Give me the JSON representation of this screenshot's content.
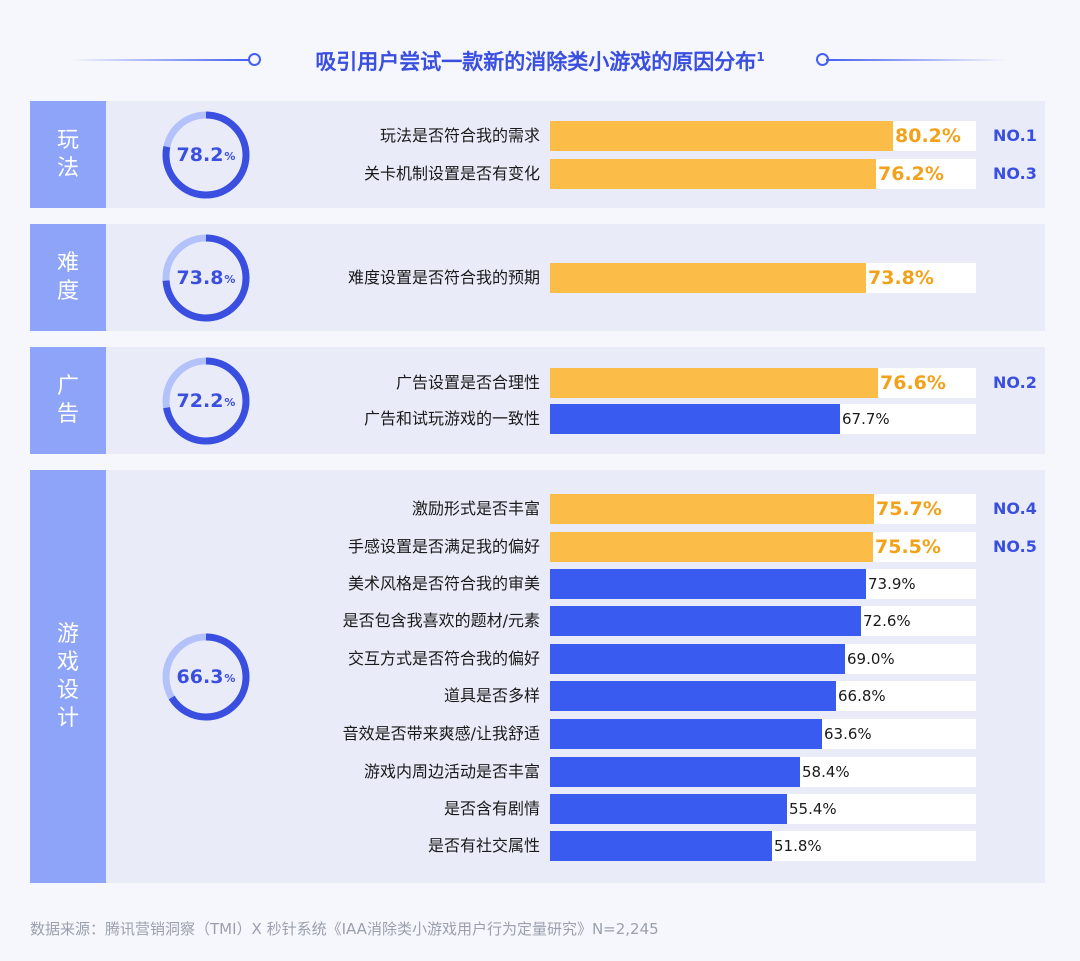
{
  "title": "吸引用户尝试一款新的消除类小游戏的原因分布",
  "title_sup": "1",
  "footer": "数据来源：腾讯营销洞察（TMI）X 秒针系统《IAA消除类小游戏用户行为定量研究》N=2,245",
  "colors": {
    "top5_bar": "#fbbd48",
    "other_bar": "#3a5bf0",
    "accent": "#3a4fe0",
    "ring_light": "#b4c2fb",
    "category_bg": "#8ea4f8"
  },
  "chart_data": {
    "type": "bar",
    "orientation": "horizontal",
    "groups": [
      {
        "category": "玩法",
        "overall": 78.2,
        "overall_label": "78.2",
        "unit": "%",
        "items": [
          {
            "label": "玩法是否符合我的需求",
            "value": 80.2,
            "value_label": "80.2%",
            "rank": "NO.1",
            "highlight": true
          },
          {
            "label": "关卡机制设置是否有变化",
            "value": 76.2,
            "value_label": "76.2%",
            "rank": "NO.3",
            "highlight": true
          }
        ]
      },
      {
        "category": "难度",
        "overall": 73.8,
        "overall_label": "73.8",
        "unit": "%",
        "items": [
          {
            "label": "难度设置是否符合我的预期",
            "value": 73.8,
            "value_label": "73.8%",
            "rank": "",
            "highlight": true
          }
        ]
      },
      {
        "category": "广告",
        "overall": 72.2,
        "overall_label": "72.2",
        "unit": "%",
        "items": [
          {
            "label": "广告设置是否合理性",
            "value": 76.6,
            "value_label": "76.6%",
            "rank": "NO.2",
            "highlight": true
          },
          {
            "label": "广告和试玩游戏的一致性",
            "value": 67.7,
            "value_label": "67.7%",
            "rank": "",
            "highlight": false
          }
        ]
      },
      {
        "category": "游戏设计",
        "overall": 66.3,
        "overall_label": "66.3",
        "unit": "%",
        "items": [
          {
            "label": "激励形式是否丰富",
            "value": 75.7,
            "value_label": "75.7%",
            "rank": "NO.4",
            "highlight": true
          },
          {
            "label": "手感设置是否满足我的偏好",
            "value": 75.5,
            "value_label": "75.5%",
            "rank": "NO.5",
            "highlight": true
          },
          {
            "label": "美术风格是否符合我的审美",
            "value": 73.9,
            "value_label": "73.9%",
            "rank": "",
            "highlight": false
          },
          {
            "label": "是否包含我喜欢的题材/元素",
            "value": 72.6,
            "value_label": "72.6%",
            "rank": "",
            "highlight": false
          },
          {
            "label": "交互方式是否符合我的偏好",
            "value": 69.0,
            "value_label": "69.0%",
            "rank": "",
            "highlight": false
          },
          {
            "label": "道具是否多样",
            "value": 66.8,
            "value_label": "66.8%",
            "rank": "",
            "highlight": false
          },
          {
            "label": "音效是否带来爽感/让我舒适",
            "value": 63.6,
            "value_label": "63.6%",
            "rank": "",
            "highlight": false
          },
          {
            "label": "游戏内周边活动是否丰富",
            "value": 58.4,
            "value_label": "58.4%",
            "rank": "",
            "highlight": false
          },
          {
            "label": "是否含有剧情",
            "value": 55.4,
            "value_label": "55.4%",
            "rank": "",
            "highlight": false
          },
          {
            "label": "是否有社交属性",
            "value": 51.8,
            "value_label": "51.8%",
            "rank": "",
            "highlight": false
          }
        ]
      }
    ]
  }
}
